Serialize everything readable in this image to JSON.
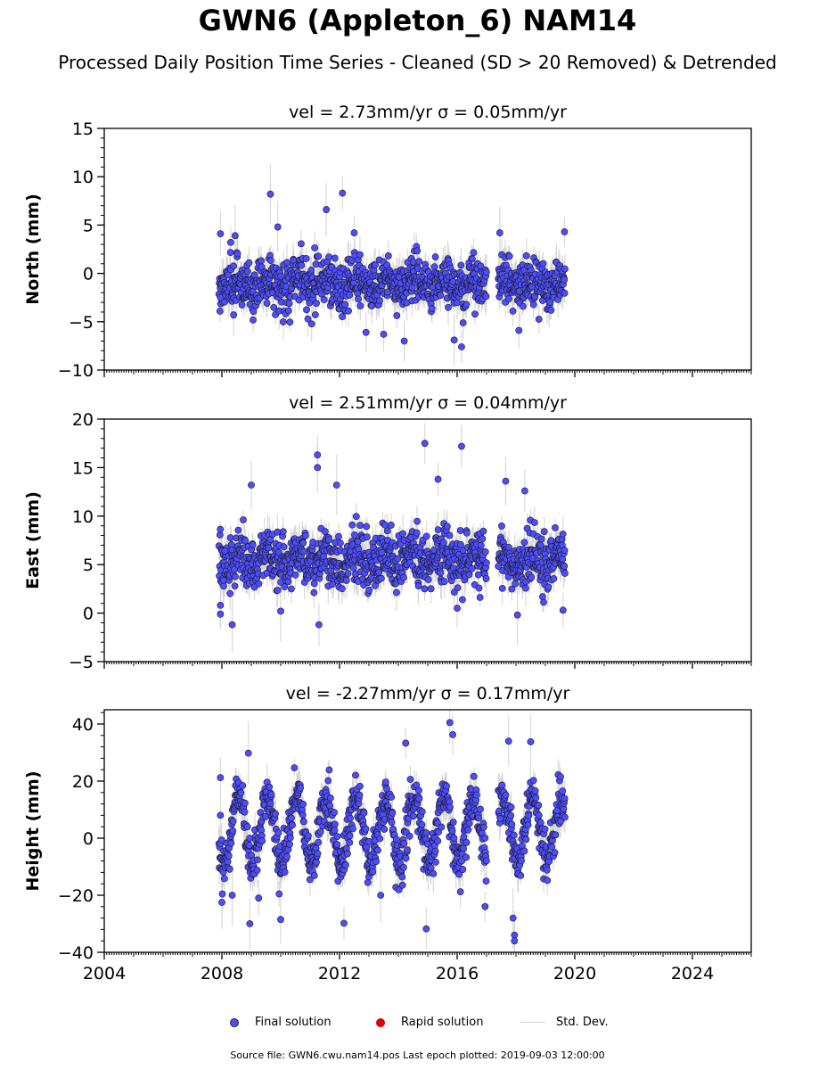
{
  "title": "GWN6 (Appleton_6) NAM14",
  "subtitle": "Processed Daily Position Time Series - Cleaned (SD > 20 Removed) & Detrended",
  "source_note": "Source file: GWN6.cwu.nam14.pos  Last epoch plotted: 2019-09-03 12:00:00",
  "legend": {
    "final": "Final solution",
    "rapid": "Rapid solution",
    "std": "Std. Dev."
  },
  "colors": {
    "final": "#4d4dff",
    "rapid": "#dd0000",
    "std": "#cfcfcf"
  },
  "chart_data": [
    {
      "type": "scatter",
      "title": "vel = 2.73mm/yr   σ = 0.05mm/yr",
      "ylabel": "North (mm)",
      "xlim": [
        2004,
        2026
      ],
      "ylim": [
        -10,
        15
      ],
      "yticks": [
        -10,
        -5,
        0,
        5,
        10,
        15
      ],
      "xticks": [
        2004,
        2008,
        2012,
        2016,
        2020,
        2024
      ],
      "show_xticklabels": false,
      "series": [
        {
          "name": "Final solution",
          "segments": [
            [
              2007.9,
              2017.0
            ],
            [
              2017.4,
              2019.67
            ]
          ],
          "center": -1.0,
          "seasonal_amplitude": 0.5,
          "scatter": 1.3,
          "outliers": [
            [
              2007.95,
              4.1
            ],
            [
              2008.3,
              3.2
            ],
            [
              2008.45,
              3.9
            ],
            [
              2009.65,
              8.2
            ],
            [
              2011.55,
              6.6
            ],
            [
              2012.1,
              8.3
            ],
            [
              2012.5,
              4.2
            ],
            [
              2017.45,
              4.2
            ],
            [
              2019.65,
              4.3
            ],
            [
              2009.9,
              4.8
            ],
            [
              2014.2,
              -7.0
            ],
            [
              2016.15,
              -7.6
            ],
            [
              2015.9,
              -6.9
            ],
            [
              2013.5,
              -6.3
            ],
            [
              2018.1,
              -5.9
            ],
            [
              2007.95,
              -2.5
            ],
            [
              2008.4,
              -4.3
            ],
            [
              2012.9,
              -6.1
            ]
          ]
        }
      ]
    },
    {
      "type": "scatter",
      "title": "vel = 2.51mm/yr   σ = 0.04mm/yr",
      "ylabel": "East (mm)",
      "xlim": [
        2004,
        2026
      ],
      "ylim": [
        -5,
        20
      ],
      "yticks": [
        -5,
        0,
        5,
        10,
        15,
        20
      ],
      "xticks": [
        2004,
        2008,
        2012,
        2016,
        2020,
        2024
      ],
      "show_xticklabels": false,
      "series": [
        {
          "name": "Final solution",
          "segments": [
            [
              2007.9,
              2017.0
            ],
            [
              2017.4,
              2019.67
            ]
          ],
          "center": 5.5,
          "seasonal_amplitude": 0.6,
          "scatter": 1.4,
          "outliers": [
            [
              2007.95,
              -0.1
            ],
            [
              2007.95,
              0.8
            ],
            [
              2008.35,
              -1.2
            ],
            [
              2011.25,
              16.3
            ],
            [
              2011.25,
              15.0
            ],
            [
              2014.9,
              17.5
            ],
            [
              2016.15,
              17.2
            ],
            [
              2009.0,
              13.2
            ],
            [
              2011.9,
              13.2
            ],
            [
              2015.35,
              13.8
            ],
            [
              2017.65,
              13.6
            ],
            [
              2018.3,
              12.6
            ],
            [
              2011.3,
              -1.2
            ],
            [
              2018.05,
              -0.2
            ],
            [
              2019.6,
              0.3
            ],
            [
              2016.0,
              0.5
            ],
            [
              2010.0,
              0.2
            ],
            [
              2008.1,
              6.4
            ],
            [
              2008.05,
              3.4
            ]
          ]
        }
      ]
    },
    {
      "type": "scatter",
      "title": "vel = -2.27mm/yr   σ = 0.17mm/yr",
      "ylabel": "Height (mm)",
      "xlim": [
        2004,
        2026
      ],
      "ylim": [
        -40,
        45
      ],
      "yticks": [
        -40,
        -20,
        0,
        20,
        40
      ],
      "xticks": [
        2004,
        2008,
        2012,
        2016,
        2020,
        2024
      ],
      "xticklabels": [
        "2004",
        "2008",
        "2012",
        "2016",
        "2020",
        "2024"
      ],
      "show_xticklabels": true,
      "series": [
        {
          "name": "Final solution",
          "segments": [
            [
              2007.9,
              2017.0
            ],
            [
              2017.4,
              2019.67
            ]
          ],
          "center": 3.0,
          "seasonal_amplitude": 12.0,
          "scatter": 4.0,
          "outliers": [
            [
              2007.95,
              21.2
            ],
            [
              2008.0,
              -22.5
            ],
            [
              2008.35,
              -20.0
            ],
            [
              2008.9,
              29.8
            ],
            [
              2008.95,
              -30.0
            ],
            [
              2012.15,
              -29.8
            ],
            [
              2014.95,
              -31.8
            ],
            [
              2015.75,
              40.5
            ],
            [
              2017.9,
              -28.0
            ],
            [
              2017.95,
              -34.0
            ],
            [
              2017.95,
              -36.0
            ],
            [
              2017.75,
              34.0
            ],
            [
              2018.5,
              33.8
            ],
            [
              2014.25,
              33.3
            ],
            [
              2015.85,
              36.3
            ],
            [
              2010.0,
              -28.5
            ],
            [
              2016.95,
              -24.0
            ],
            [
              2009.25,
              -21.0
            ],
            [
              2013.4,
              -20.0
            ],
            [
              2007.95,
              8.0
            ]
          ]
        }
      ]
    }
  ]
}
